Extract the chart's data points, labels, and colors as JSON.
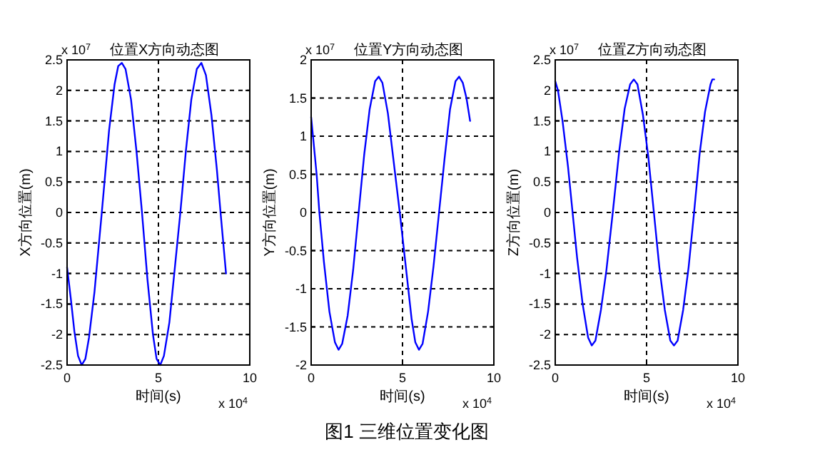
{
  "chart_data": [
    {
      "type": "line",
      "title": "位置X方向动态图",
      "xlabel": "时间(s)",
      "ylabel": "X方向位置(m)",
      "annotations": [
        "x 10$^{7}$",
        "x 10$^{4}$"
      ],
      "x": [
        0,
        0.2,
        0.4,
        0.6,
        0.8,
        1.0,
        1.2,
        1.5,
        1.9,
        2.3,
        2.6,
        2.8,
        3.0,
        3.2,
        3.5,
        3.8,
        4.1,
        4.4,
        4.7,
        4.9,
        5.1,
        5.3,
        5.6,
        5.9,
        6.2,
        6.5,
        6.8,
        7.1,
        7.35,
        7.6,
        7.9,
        8.2,
        8.4,
        8.7
      ],
      "series": [
        {
          "color": "#0000ff",
          "values": [
            -0.9,
            -1.4,
            -1.95,
            -2.35,
            -2.5,
            -2.4,
            -2.05,
            -1.3,
            0,
            1.35,
            2.1,
            2.4,
            2.45,
            2.35,
            1.85,
            1.0,
            0,
            -1.1,
            -2.0,
            -2.4,
            -2.5,
            -2.35,
            -1.8,
            -0.9,
            0,
            1.0,
            1.85,
            2.35,
            2.45,
            2.25,
            1.6,
            0.7,
            0,
            -1.0
          ]
        }
      ],
      "xlim": [
        0,
        10
      ],
      "xticks": [
        0,
        5,
        10
      ],
      "ylim": [
        -2.5,
        2.5
      ],
      "yticks": [
        -2.5,
        -2,
        -1.5,
        -1,
        -0.5,
        0,
        0.5,
        1,
        1.5,
        2,
        2.5
      ],
      "grid": true,
      "line_style": "solid"
    },
    {
      "type": "line",
      "title": "位置Y方向动态图",
      "xlabel": "时间(s)",
      "ylabel": "Y方向位置(m)",
      "annotations": [
        "x 10$^{7}$",
        "x 10$^{4}$",
        "图1 三维位置变化图"
      ],
      "x": [
        0,
        0.1,
        0.3,
        0.45,
        0.7,
        1.0,
        1.3,
        1.5,
        1.7,
        2.0,
        2.3,
        2.6,
        2.9,
        3.2,
        3.5,
        3.7,
        3.9,
        4.2,
        4.5,
        4.85,
        5.2,
        5.5,
        5.7,
        5.9,
        6.1,
        6.4,
        6.7,
        7.0,
        7.3,
        7.6,
        7.9,
        8.1,
        8.3,
        8.5,
        8.7
      ],
      "series": [
        {
          "color": "#0000ff",
          "values": [
            1.25,
            1.0,
            0.5,
            0,
            -0.65,
            -1.3,
            -1.7,
            -1.8,
            -1.72,
            -1.35,
            -0.75,
            0,
            0.75,
            1.35,
            1.72,
            1.78,
            1.7,
            1.3,
            0.7,
            0,
            -0.75,
            -1.4,
            -1.7,
            -1.8,
            -1.72,
            -1.3,
            -0.7,
            0,
            0.7,
            1.35,
            1.72,
            1.78,
            1.7,
            1.5,
            1.2
          ]
        }
      ],
      "xlim": [
        0,
        10
      ],
      "xticks": [
        0,
        5,
        10
      ],
      "ylim": [
        -2,
        2
      ],
      "yticks": [
        -2,
        -1.5,
        -1,
        -0.5,
        0,
        0.5,
        1,
        1.5,
        2
      ],
      "grid": true,
      "line_style": "solid"
    },
    {
      "type": "line",
      "title": "位置Z方向动态图",
      "xlabel": "时间(s)",
      "ylabel": "Z方向位置(m)",
      "annotations": [
        "x 10$^{7}$",
        "x 10$^{4}$"
      ],
      "x": [
        0,
        0.15,
        0.4,
        0.7,
        0.95,
        1.2,
        1.5,
        1.8,
        2.0,
        2.2,
        2.5,
        2.8,
        3.15,
        3.5,
        3.8,
        4.1,
        4.3,
        4.5,
        4.8,
        5.1,
        5.4,
        5.7,
        6.0,
        6.3,
        6.5,
        6.7,
        7.0,
        7.3,
        7.6,
        7.9,
        8.2,
        8.5,
        8.6,
        8.7
      ],
      "series": [
        {
          "color": "#0000ff",
          "values": [
            2.15,
            2.0,
            1.5,
            0.75,
            0,
            -0.75,
            -1.5,
            -2.05,
            -2.18,
            -2.1,
            -1.6,
            -0.95,
            0,
            1.0,
            1.7,
            2.1,
            2.18,
            2.1,
            1.6,
            0.9,
            0,
            -0.9,
            -1.6,
            -2.1,
            -2.18,
            -2.1,
            -1.6,
            -0.9,
            0,
            0.95,
            1.65,
            2.1,
            2.18,
            2.18
          ]
        }
      ],
      "xlim": [
        0,
        10
      ],
      "xticks": [
        0,
        5,
        10
      ],
      "ylim": [
        -2.5,
        2.5
      ],
      "yticks": [
        -2.5,
        -2,
        -1.5,
        -1,
        -0.5,
        0,
        0.5,
        1,
        1.5,
        2,
        2.5
      ],
      "grid": true,
      "line_style": "solid"
    }
  ]
}
